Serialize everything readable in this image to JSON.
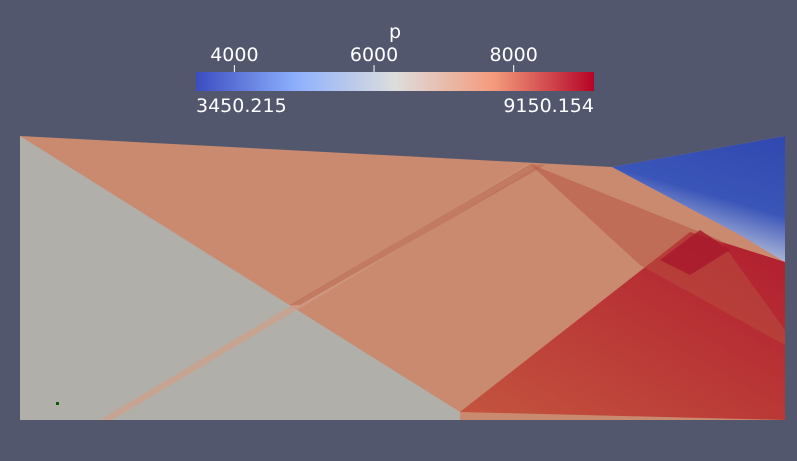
{
  "colorbar": {
    "title": "p",
    "range": [
      3450.215,
      9150.154
    ],
    "ticks": [
      4000,
      6000,
      8000
    ]
  }
}
